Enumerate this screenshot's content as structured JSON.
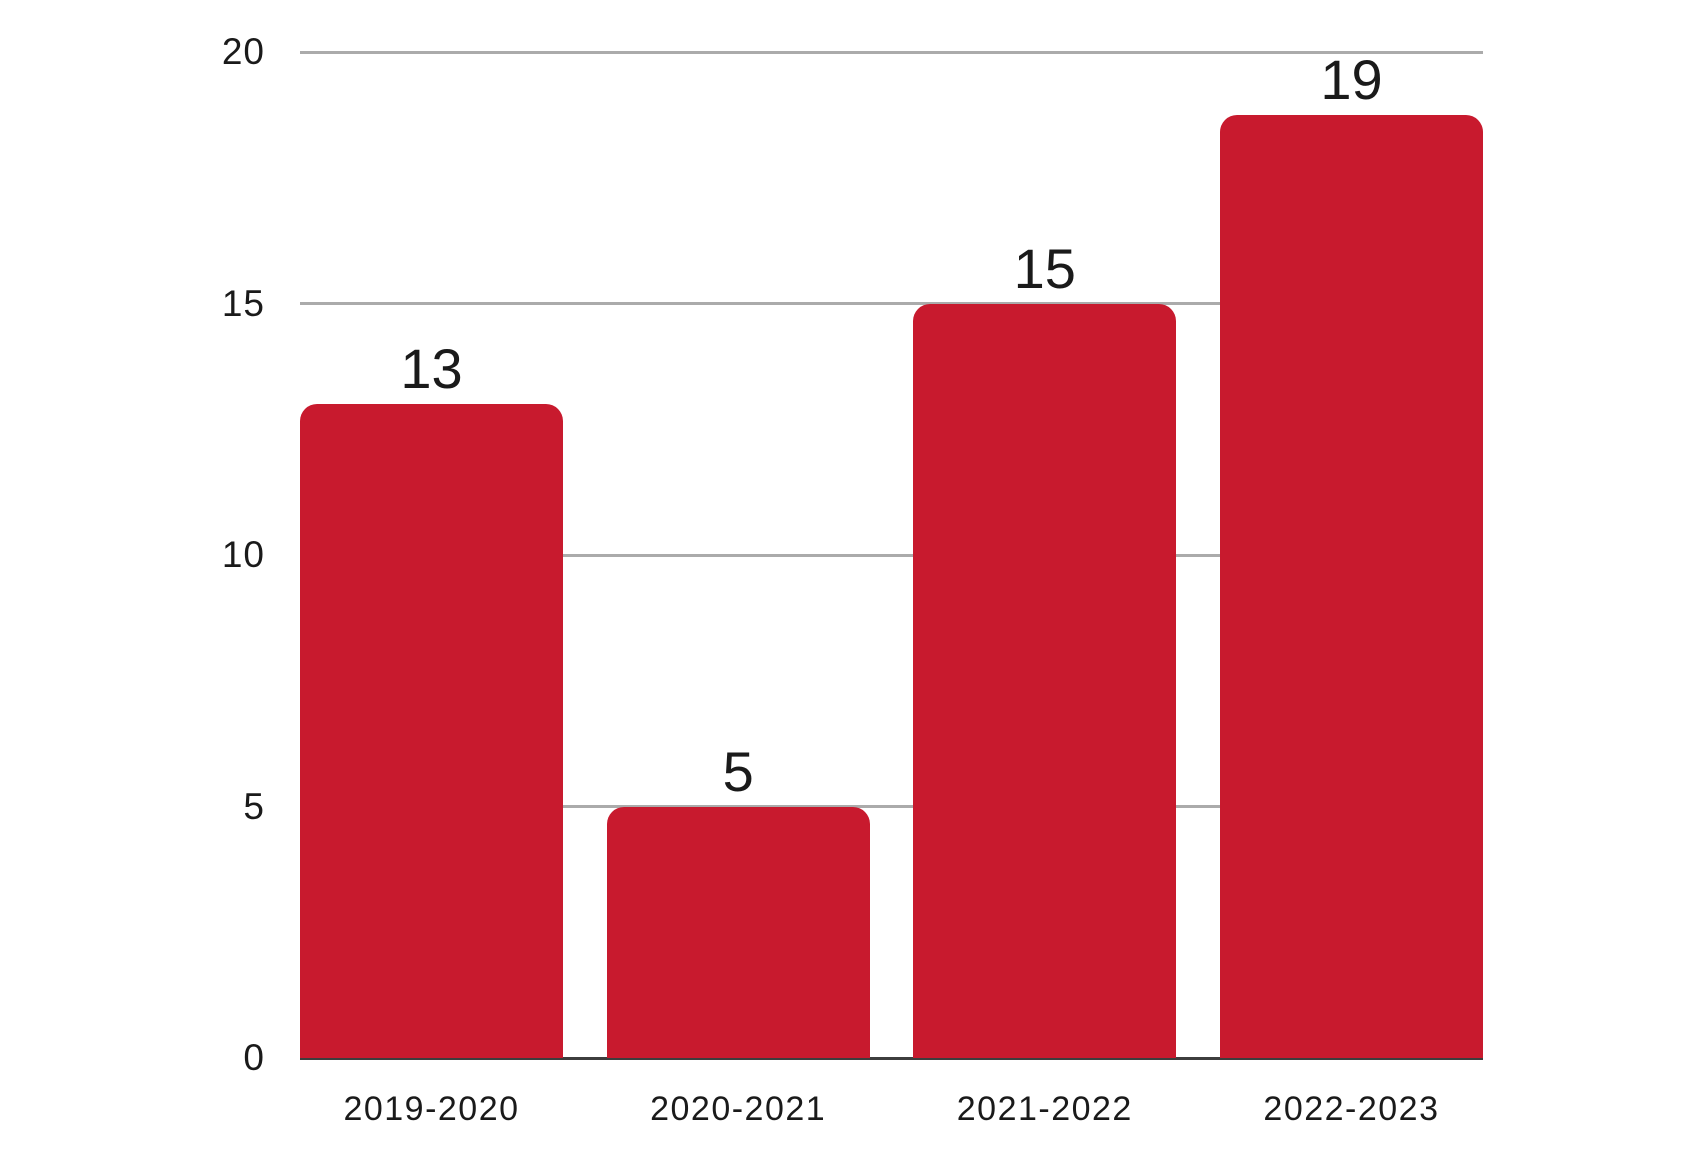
{
  "chart_data": {
    "type": "bar",
    "title": "",
    "categories": [
      "2019-2020",
      "2020-2021",
      "2021-2022",
      "2022-2023"
    ],
    "values": [
      13,
      5,
      15,
      19
    ],
    "data_labels": [
      "13",
      "5",
      "15",
      "19"
    ],
    "xlabel": "",
    "ylabel": "",
    "ylim": [
      0,
      20
    ],
    "yticks": [
      0,
      5,
      10,
      15,
      20
    ],
    "grid": true,
    "legend": false,
    "colors": {
      "bar": "#C81A2E",
      "gridline": "#ABABAB",
      "axis_line": "#3D3D3D",
      "text": "#1A1A1A",
      "background": "#FFFFFF"
    }
  }
}
